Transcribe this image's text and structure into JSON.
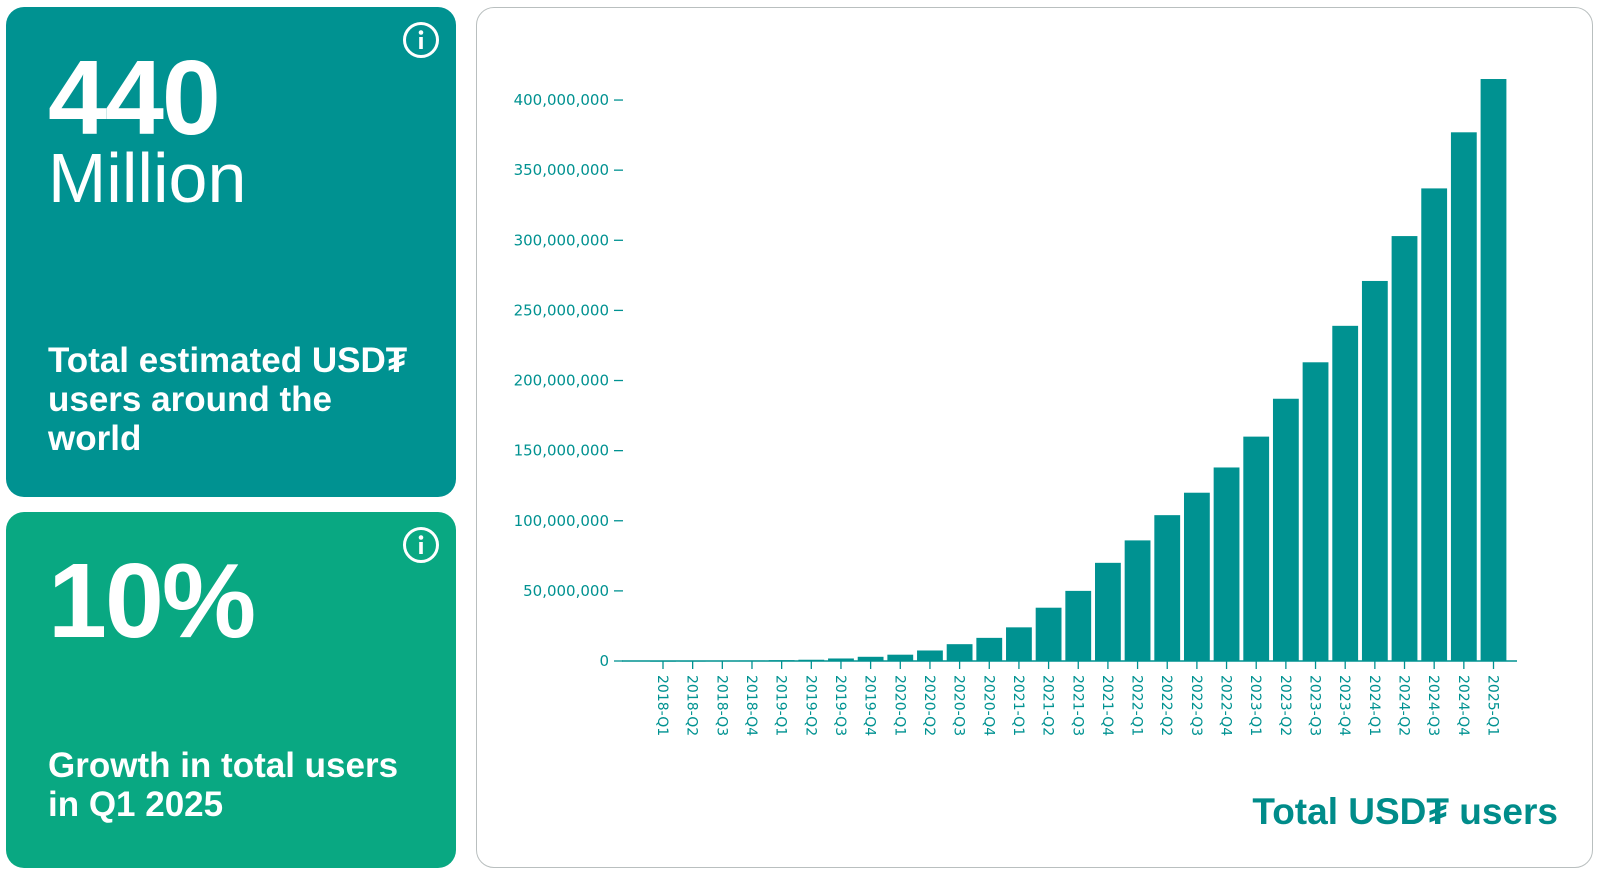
{
  "colors": {
    "users_card": "#009291",
    "growth_card": "#09a882",
    "bar": "#009291",
    "axis": "#009291",
    "text_on_card": "#ffffff"
  },
  "users_card": {
    "value": "440",
    "unit": "Million",
    "description": "Total estimated USD₮ users around the world",
    "icon": "info-icon"
  },
  "growth_card": {
    "value": "10%",
    "description": "Growth in total users in Q1 2025",
    "icon": "info-icon"
  },
  "chart_data": {
    "type": "bar",
    "title": "Total USD₮ users",
    "xlabel": "",
    "ylabel": "",
    "ylim": [
      0,
      420000000
    ],
    "yticks": [
      0,
      50000000,
      100000000,
      150000000,
      200000000,
      250000000,
      300000000,
      350000000,
      400000000
    ],
    "ytick_labels": [
      "0",
      "50,000,000",
      "100,000,000",
      "150,000,000",
      "200,000,000",
      "250,000,000",
      "300,000,000",
      "350,000,000",
      "400,000,000"
    ],
    "grid": false,
    "categories": [
      "2018-Q1",
      "2018-Q2",
      "2018-Q3",
      "2018-Q4",
      "2019-Q1",
      "2019-Q2",
      "2019-Q3",
      "2019-Q4",
      "2020-Q1",
      "2020-Q2",
      "2020-Q3",
      "2020-Q4",
      "2021-Q1",
      "2021-Q2",
      "2021-Q3",
      "2021-Q4",
      "2022-Q1",
      "2022-Q2",
      "2022-Q3",
      "2022-Q4",
      "2023-Q1",
      "2023-Q2",
      "2023-Q3",
      "2023-Q4",
      "2024-Q1",
      "2024-Q2",
      "2024-Q3",
      "2024-Q4",
      "2025-Q1"
    ],
    "values": [
      100000,
      150000,
      250000,
      400000,
      600000,
      900000,
      1800000,
      3000000,
      4500000,
      7500000,
      12000000,
      16500000,
      24000000,
      38000000,
      50000000,
      70000000,
      86000000,
      104000000,
      120000000,
      138000000,
      160000000,
      187000000,
      213000000,
      239000000,
      271000000,
      303000000,
      337000000,
      377000000,
      415000000
    ]
  }
}
